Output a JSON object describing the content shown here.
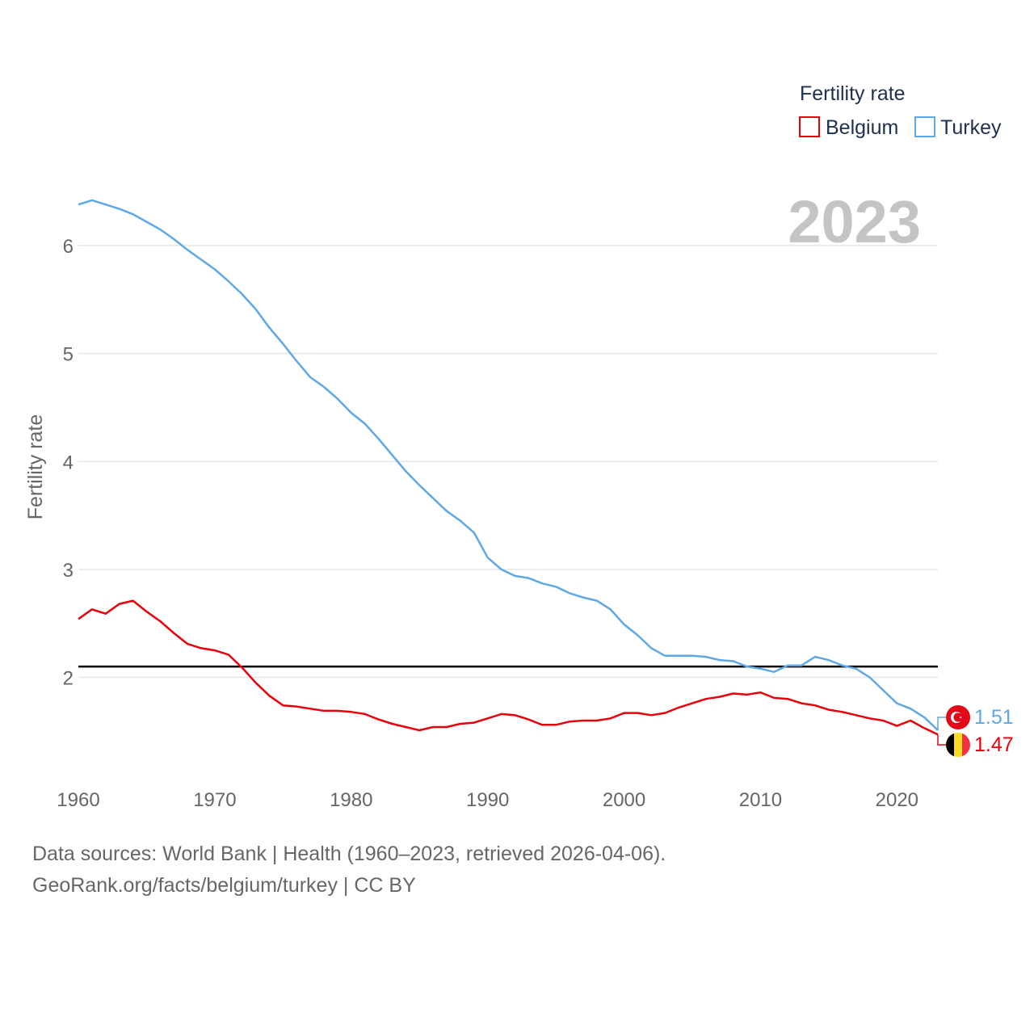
{
  "chart_data": {
    "type": "line",
    "ylabel": "Fertility rate",
    "xlabel": "",
    "current_year": "2023",
    "legend_title": "Fertility rate",
    "x_ticks": [
      1960,
      1970,
      1980,
      1990,
      2000,
      2010,
      2020
    ],
    "y_ticks": [
      2,
      3,
      4,
      5,
      6
    ],
    "xlim": [
      1960,
      2023
    ],
    "ylim": [
      1.0,
      6.8
    ],
    "reference_line": 2.1,
    "x": [
      1960,
      1961,
      1962,
      1963,
      1964,
      1965,
      1966,
      1967,
      1968,
      1969,
      1970,
      1971,
      1972,
      1973,
      1974,
      1975,
      1976,
      1977,
      1978,
      1979,
      1980,
      1981,
      1982,
      1983,
      1984,
      1985,
      1986,
      1987,
      1988,
      1989,
      1990,
      1991,
      1992,
      1993,
      1994,
      1995,
      1996,
      1997,
      1998,
      1999,
      2000,
      2001,
      2002,
      2003,
      2004,
      2005,
      2006,
      2007,
      2008,
      2009,
      2010,
      2011,
      2012,
      2013,
      2014,
      2015,
      2016,
      2017,
      2018,
      2019,
      2020,
      2021,
      2022,
      2023
    ],
    "series": [
      {
        "name": "Belgium",
        "color": "#e8000b",
        "end_label": "1.47",
        "values": [
          2.54,
          2.63,
          2.59,
          2.68,
          2.71,
          2.61,
          2.52,
          2.41,
          2.31,
          2.27,
          2.25,
          2.21,
          2.09,
          1.95,
          1.83,
          1.74,
          1.73,
          1.71,
          1.69,
          1.69,
          1.68,
          1.66,
          1.61,
          1.57,
          1.54,
          1.51,
          1.54,
          1.54,
          1.57,
          1.58,
          1.62,
          1.66,
          1.65,
          1.61,
          1.56,
          1.56,
          1.59,
          1.6,
          1.6,
          1.62,
          1.67,
          1.67,
          1.65,
          1.67,
          1.72,
          1.76,
          1.8,
          1.82,
          1.85,
          1.84,
          1.86,
          1.81,
          1.8,
          1.76,
          1.74,
          1.7,
          1.68,
          1.65,
          1.62,
          1.6,
          1.55,
          1.6,
          1.53,
          1.47
        ]
      },
      {
        "name": "Turkey",
        "color": "#5fa8e8",
        "end_label": "1.51",
        "values": [
          6.38,
          6.42,
          6.38,
          6.34,
          6.29,
          6.22,
          6.15,
          6.06,
          5.96,
          5.87,
          5.78,
          5.67,
          5.55,
          5.41,
          5.24,
          5.09,
          4.93,
          4.78,
          4.69,
          4.58,
          4.45,
          4.35,
          4.21,
          4.06,
          3.91,
          3.78,
          3.66,
          3.54,
          3.45,
          3.34,
          3.11,
          3.0,
          2.94,
          2.92,
          2.87,
          2.84,
          2.78,
          2.74,
          2.71,
          2.63,
          2.49,
          2.39,
          2.27,
          2.2,
          2.2,
          2.2,
          2.19,
          2.16,
          2.15,
          2.1,
          2.08,
          2.05,
          2.11,
          2.11,
          2.19,
          2.16,
          2.11,
          2.08,
          2.0,
          1.88,
          1.76,
          1.71,
          1.63,
          1.51
        ]
      }
    ]
  },
  "footer": {
    "line1": "Data sources: World Bank | Health (1960–2023, retrieved 2026-04-06).",
    "line2": "GeoRank.org/facts/belgium/turkey | CC BY"
  }
}
